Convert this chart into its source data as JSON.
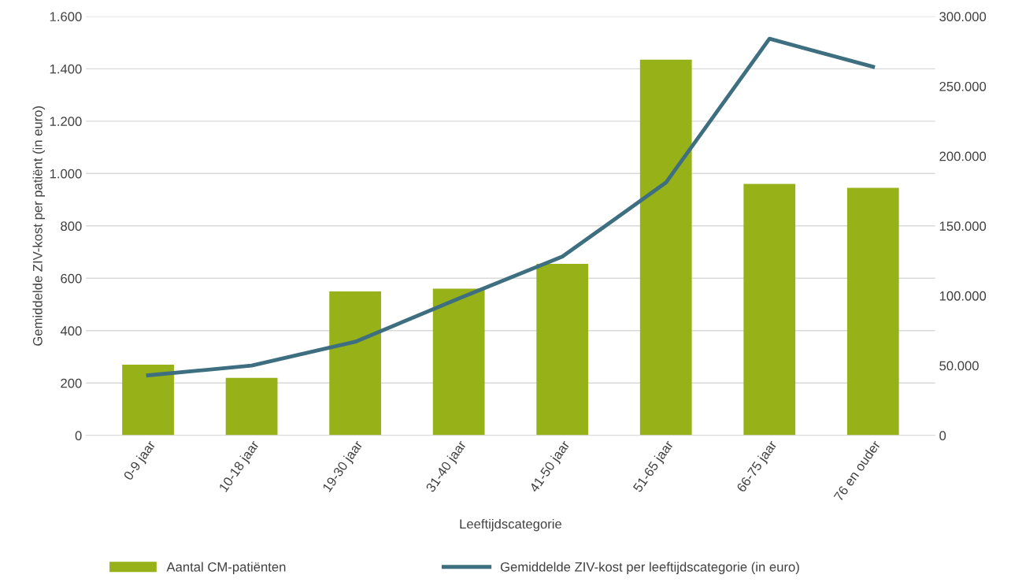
{
  "chart_data": {
    "type": "bar",
    "xlabel": "Leeftijdscategorie",
    "ylabel": "Gemiddelde ZIV-kost per patiënt (in euro)",
    "categories": [
      "0-9 jaar",
      "10-18 jaar",
      "19-30 jaar",
      "31-40 jaar",
      "41-50 jaar",
      "51-65 jaar",
      "66-75 jaar",
      "76 en ouder"
    ],
    "series": [
      {
        "name": "Aantal CM-patiënten",
        "color": "#97b219",
        "values": [
          270,
          220,
          550,
          560,
          655,
          1435,
          960,
          945
        ]
      },
      {
        "name": "Gemiddelde ZIV-kost per leeftijdscategorie (in euro)",
        "type": "line",
        "axis": "y2",
        "color": "#3e6f80",
        "values": [
          43000,
          50000,
          67000,
          98000,
          128000,
          181000,
          284000,
          264000
        ]
      }
    ],
    "ylim": [
      0,
      1600
    ],
    "yticks": [
      {
        "value": 0,
        "label": "0"
      },
      {
        "value": 200,
        "label": "200"
      },
      {
        "value": 400,
        "label": "400"
      },
      {
        "value": 600,
        "label": "600"
      },
      {
        "value": 800,
        "label": "800"
      },
      {
        "value": 1000,
        "label": "1.000"
      },
      {
        "value": 1200,
        "label": "1.200"
      },
      {
        "value": 1400,
        "label": "1.400"
      },
      {
        "value": 1600,
        "label": "1.600"
      }
    ],
    "y2lim": [
      0,
      300000
    ],
    "y2ticks": [
      {
        "value": 0,
        "label": "0"
      },
      {
        "value": 50000,
        "label": "50.000"
      },
      {
        "value": 100000,
        "label": "100.000"
      },
      {
        "value": 150000,
        "label": "150.000"
      },
      {
        "value": 200000,
        "label": "200.000"
      },
      {
        "value": 250000,
        "label": "250.000"
      },
      {
        "value": 300000,
        "label": "300.000"
      }
    ],
    "grid": "y",
    "legend": "bottom",
    "marker": "none",
    "line_style": "solid"
  }
}
